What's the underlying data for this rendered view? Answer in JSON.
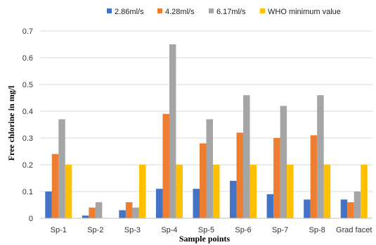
{
  "chart_data": {
    "type": "bar",
    "title": "",
    "xlabel": "Sample points",
    "ylabel": "Free chlorine in mg/l",
    "ylim": [
      0,
      0.7
    ],
    "yticks": [
      "0",
      "0.1",
      "0.2",
      "0.3",
      "0.4",
      "0.5",
      "0.6",
      "0.7"
    ],
    "categories": [
      "Sp-1",
      "Sp-2",
      "Sp-3",
      "Sp-4",
      "Sp-5",
      "Sp-6",
      "Sp-7",
      "Sp-8",
      "Grad facet"
    ],
    "series": [
      {
        "name": "2.86ml/s",
        "color": "#4472c4",
        "values": [
          0.1,
          0.01,
          0.03,
          0.11,
          0.11,
          0.14,
          0.09,
          0.07,
          0.07
        ]
      },
      {
        "name": "4.28ml/s",
        "color": "#ed7d31",
        "values": [
          0.24,
          0.04,
          0.06,
          0.39,
          0.28,
          0.32,
          0.3,
          0.31,
          0.06
        ]
      },
      {
        "name": "6.17ml/s",
        "color": "#a5a5a5",
        "values": [
          0.37,
          0.06,
          0.04,
          0.65,
          0.37,
          0.46,
          0.42,
          0.46,
          0.1
        ]
      },
      {
        "name": "WHO minimum value",
        "color": "#ffc000",
        "values": [
          0.2,
          0.0,
          0.2,
          0.2,
          0.2,
          0.2,
          0.2,
          0.2,
          0.2
        ]
      }
    ],
    "grid": true,
    "legend_position": "top"
  }
}
